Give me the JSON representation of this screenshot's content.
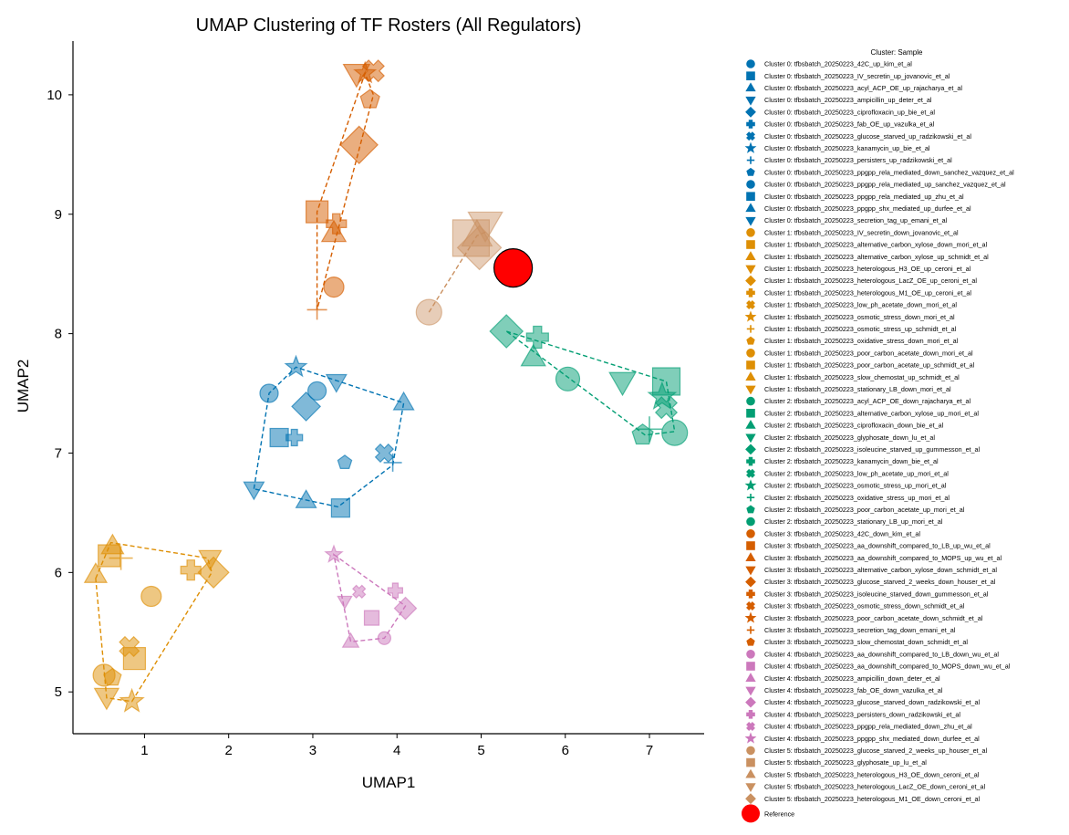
{
  "chart_data": {
    "type": "scatter",
    "title": "UMAP Clustering of TF Rosters (All Regulators)",
    "xlabel": "UMAP1",
    "ylabel": "UMAP2",
    "xlim": [
      0.15,
      7.65
    ],
    "ylim": [
      4.65,
      10.45
    ],
    "xticks": [
      1,
      2,
      3,
      4,
      5,
      6,
      7
    ],
    "yticks": [
      5,
      6,
      7,
      8,
      9,
      10
    ],
    "grid": false,
    "legend_position": "right",
    "legend_title": "Cluster: Sample",
    "cluster_colors": {
      "0": "#0173b2",
      "1": "#de8f05",
      "2": "#029e73",
      "3": "#d55e00",
      "4": "#cc78bc",
      "5": "#ca9161"
    },
    "reference": {
      "label": "Reference",
      "x": 5.38,
      "y": 8.55,
      "color": "#ff0000"
    },
    "hulls": {
      "0": [
        [
          2.3,
          6.7
        ],
        [
          2.48,
          7.5
        ],
        [
          2.8,
          7.72
        ],
        [
          4.08,
          7.42
        ],
        [
          3.95,
          6.9
        ],
        [
          3.3,
          6.55
        ]
      ],
      "1": [
        [
          0.42,
          5.95
        ],
        [
          0.6,
          6.25
        ],
        [
          1.75,
          6.12
        ],
        [
          1.8,
          6.0
        ],
        [
          0.85,
          4.92
        ],
        [
          0.55,
          4.95
        ]
      ],
      "2": [
        [
          5.3,
          8.02
        ],
        [
          7.2,
          7.6
        ],
        [
          7.3,
          7.18
        ],
        [
          6.95,
          7.15
        ]
      ],
      "3": [
        [
          3.05,
          8.2
        ],
        [
          3.05,
          9.02
        ],
        [
          3.62,
          10.18
        ],
        [
          3.72,
          10.0
        ]
      ],
      "4": [
        [
          3.25,
          6.15
        ],
        [
          4.1,
          5.72
        ],
        [
          3.85,
          5.45
        ],
        [
          3.45,
          5.42
        ]
      ],
      "5": [
        [
          4.38,
          8.18
        ],
        [
          4.95,
          8.82
        ],
        [
          5.05,
          8.85
        ]
      ]
    },
    "series": [
      {
        "name": "Cluster 0: tfbsbatch_20250223_42C_up_kim_et_al",
        "cluster": 0,
        "marker": "circle",
        "size": 10,
        "x": 2.48,
        "y": 7.5
      },
      {
        "name": "Cluster 0: tfbsbatch_20250223_IV_secretin_up_jovanovic_et_al",
        "cluster": 0,
        "marker": "square",
        "size": 10,
        "x": 2.6,
        "y": 7.13
      },
      {
        "name": "Cluster 0: tfbsbatch_20250223_acyl_ACP_OE_up_rajacharya_et_al",
        "cluster": 0,
        "marker": "triangle-up",
        "size": 10,
        "x": 4.08,
        "y": 7.42
      },
      {
        "name": "Cluster 0: tfbsbatch_20250223_ampicillin_up_deter_et_al",
        "cluster": 0,
        "marker": "triangle-down",
        "size": 10,
        "x": 3.28,
        "y": 7.6
      },
      {
        "name": "Cluster 0: tfbsbatch_20250223_ciprofloxacin_up_bie_et_al",
        "cluster": 0,
        "marker": "diamond",
        "size": 13,
        "x": 2.92,
        "y": 7.39
      },
      {
        "name": "Cluster 0: tfbsbatch_20250223_fab_OE_up_vazulka_et_al",
        "cluster": 0,
        "marker": "plus",
        "size": 9,
        "x": 2.78,
        "y": 7.13
      },
      {
        "name": "Cluster 0: tfbsbatch_20250223_glucose_starved_up_radzikowski_et_al",
        "cluster": 0,
        "marker": "x",
        "size": 10,
        "x": 3.85,
        "y": 7.0
      },
      {
        "name": "Cluster 0: tfbsbatch_20250223_kanamycin_up_bie_et_al",
        "cluster": 0,
        "marker": "star",
        "size": 10,
        "x": 2.8,
        "y": 7.72
      },
      {
        "name": "Cluster 0: tfbsbatch_20250223_persisters_up_radzikowski_et_al",
        "cluster": 0,
        "marker": "thinplus",
        "size": 10,
        "x": 3.95,
        "y": 6.92
      },
      {
        "name": "Cluster 0: tfbsbatch_20250223_ppgpp_rela_mediated_down_sanchez_vazquez_et_al",
        "cluster": 0,
        "marker": "pentagon",
        "size": 8,
        "x": 3.38,
        "y": 6.92
      },
      {
        "name": "Cluster 0: tfbsbatch_20250223_ppgpp_rela_mediated_up_sanchez_vazquez_et_al",
        "cluster": 0,
        "marker": "circle",
        "size": 10,
        "x": 3.05,
        "y": 7.52
      },
      {
        "name": "Cluster 0: tfbsbatch_20250223_ppgpp_rela_mediated_up_zhu_et_al",
        "cluster": 0,
        "marker": "square",
        "size": 10,
        "x": 3.33,
        "y": 6.54
      },
      {
        "name": "Cluster 0: tfbsbatch_20250223_ppgpp_shx_mediated_up_durfee_et_al",
        "cluster": 0,
        "marker": "triangle-up",
        "size": 10,
        "x": 2.92,
        "y": 6.6
      },
      {
        "name": "Cluster 0: tfbsbatch_20250223_secretion_tag_up_emani_et_al",
        "cluster": 0,
        "marker": "triangle-down",
        "size": 10,
        "x": 2.3,
        "y": 6.7
      },
      {
        "name": "Cluster 1: tfbsbatch_20250223_IV_secretin_down_jovanovic_et_al",
        "cluster": 1,
        "marker": "circle",
        "size": 11,
        "x": 1.08,
        "y": 5.8
      },
      {
        "name": "Cluster 1: tfbsbatch_20250223_alternative_carbon_xylose_down_mori_et_al",
        "cluster": 1,
        "marker": "square",
        "size": 12,
        "x": 0.58,
        "y": 6.14
      },
      {
        "name": "Cluster 1: tfbsbatch_20250223_alternative_carbon_xylose_up_schmidt_et_al",
        "cluster": 1,
        "marker": "triangle-up",
        "size": 11,
        "x": 0.42,
        "y": 5.98
      },
      {
        "name": "Cluster 1: tfbsbatch_20250223_heterologous_H3_OE_up_ceroni_et_al",
        "cluster": 1,
        "marker": "triangle-down",
        "size": 12,
        "x": 0.55,
        "y": 4.96
      },
      {
        "name": "Cluster 1: tfbsbatch_20250223_heterologous_LacZ_OE_up_ceroni_et_al",
        "cluster": 1,
        "marker": "diamond",
        "size": 14,
        "x": 1.82,
        "y": 6.0
      },
      {
        "name": "Cluster 1: tfbsbatch_20250223_heterologous_M1_OE_up_ceroni_et_al",
        "cluster": 1,
        "marker": "plus",
        "size": 11,
        "x": 1.55,
        "y": 6.02
      },
      {
        "name": "Cluster 1: tfbsbatch_20250223_low_ph_acetate_down_mori_et_al",
        "cluster": 1,
        "marker": "x",
        "size": 11,
        "x": 0.82,
        "y": 5.38
      },
      {
        "name": "Cluster 1: tfbsbatch_20250223_osmotic_stress_down_mori_et_al",
        "cluster": 1,
        "marker": "star",
        "size": 11,
        "x": 0.85,
        "y": 4.92
      },
      {
        "name": "Cluster 1: tfbsbatch_20250223_osmotic_stress_up_schmidt_et_al",
        "cluster": 1,
        "marker": "thinplus",
        "size": 13,
        "x": 0.72,
        "y": 6.12
      },
      {
        "name": "Cluster 1: tfbsbatch_20250223_oxidative_stress_down_mori_et_al",
        "cluster": 1,
        "marker": "pentagon",
        "size": 10,
        "x": 0.62,
        "y": 5.12
      },
      {
        "name": "Cluster 1: tfbsbatch_20250223_poor_carbon_acetate_down_mori_et_al",
        "cluster": 1,
        "marker": "circle",
        "size": 12,
        "x": 0.52,
        "y": 5.14
      },
      {
        "name": "Cluster 1: tfbsbatch_20250223_poor_carbon_acetate_up_schmidt_et_al",
        "cluster": 1,
        "marker": "square",
        "size": 12,
        "x": 0.88,
        "y": 5.28
      },
      {
        "name": "Cluster 1: tfbsbatch_20250223_slow_chemostat_up_schmidt_et_al",
        "cluster": 1,
        "marker": "triangle-up",
        "size": 11,
        "x": 0.62,
        "y": 6.22
      },
      {
        "name": "Cluster 1: tfbsbatch_20250223_stationary_LB_down_mori_et_al",
        "cluster": 1,
        "marker": "triangle-down",
        "size": 11,
        "x": 1.78,
        "y": 6.12
      },
      {
        "name": "Cluster 2: tfbsbatch_20250223_acyl_ACP_OE_down_rajacharya_et_al",
        "cluster": 2,
        "marker": "circle",
        "size": 13,
        "x": 6.03,
        "y": 7.62
      },
      {
        "name": "Cluster 2: tfbsbatch_20250223_alternative_carbon_xylose_up_mori_et_al",
        "cluster": 2,
        "marker": "square",
        "size": 15,
        "x": 7.2,
        "y": 7.6
      },
      {
        "name": "Cluster 2: tfbsbatch_20250223_ciprofloxacin_down_bie_et_al",
        "cluster": 2,
        "marker": "triangle-up",
        "size": 12,
        "x": 5.62,
        "y": 7.8
      },
      {
        "name": "Cluster 2: tfbsbatch_20250223_glyphosate_down_lu_et_al",
        "cluster": 2,
        "marker": "triangle-down",
        "size": 13,
        "x": 6.68,
        "y": 7.6
      },
      {
        "name": "Cluster 2: tfbsbatch_20250223_isoleucine_starved_up_gummesson_et_al",
        "cluster": 2,
        "marker": "diamond",
        "size": 15,
        "x": 5.3,
        "y": 8.02
      },
      {
        "name": "Cluster 2: tfbsbatch_20250223_kanamycin_down_bie_et_al",
        "cluster": 2,
        "marker": "plus",
        "size": 12,
        "x": 5.67,
        "y": 7.97
      },
      {
        "name": "Cluster 2: tfbsbatch_20250223_low_ph_acetate_up_mori_et_al",
        "cluster": 2,
        "marker": "x",
        "size": 12,
        "x": 7.2,
        "y": 7.38
      },
      {
        "name": "Cluster 2: tfbsbatch_20250223_osmotic_stress_up_mori_et_al",
        "cluster": 2,
        "marker": "star",
        "size": 13,
        "x": 7.15,
        "y": 7.47
      },
      {
        "name": "Cluster 2: tfbsbatch_20250223_oxidative_stress_up_mori_et_al",
        "cluster": 2,
        "marker": "thinplus",
        "size": 14,
        "x": 7.0,
        "y": 7.2
      },
      {
        "name": "Cluster 2: tfbsbatch_20250223_poor_carbon_acetate_up_mori_et_al",
        "cluster": 2,
        "marker": "pentagon",
        "size": 12,
        "x": 6.92,
        "y": 7.15
      },
      {
        "name": "Cluster 2: tfbsbatch_20250223_stationary_LB_up_mori_et_al",
        "cluster": 2,
        "marker": "circle",
        "size": 14,
        "x": 7.3,
        "y": 7.17
      },
      {
        "name": "Cluster 3: tfbsbatch_20250223_42C_down_kim_et_al",
        "cluster": 3,
        "marker": "circle",
        "size": 11,
        "x": 3.25,
        "y": 8.39
      },
      {
        "name": "Cluster 3: tfbsbatch_20250223_aa_downshift_compared_to_LB_up_wu_et_al",
        "cluster": 3,
        "marker": "square",
        "size": 12,
        "x": 3.05,
        "y": 9.02
      },
      {
        "name": "Cluster 3: tfbsbatch_20250223_aa_downshift_compared_to_MOPS_up_wu_et_al",
        "cluster": 3,
        "marker": "triangle-up",
        "size": 12,
        "x": 3.25,
        "y": 8.84
      },
      {
        "name": "Cluster 3: tfbsbatch_20250223_alternative_carbon_xylose_down_schmidt_et_al",
        "cluster": 3,
        "marker": "triangle-down",
        "size": 13,
        "x": 3.52,
        "y": 10.18
      },
      {
        "name": "Cluster 3: tfbsbatch_20250223_glucose_starved_2_weeks_down_houser_et_al",
        "cluster": 3,
        "marker": "diamond",
        "size": 17,
        "x": 3.55,
        "y": 9.58
      },
      {
        "name": "Cluster 3: tfbsbatch_20250223_isoleucine_starved_down_gummesson_et_al",
        "cluster": 3,
        "marker": "plus",
        "size": 11,
        "x": 3.28,
        "y": 8.92
      },
      {
        "name": "Cluster 3: tfbsbatch_20250223_osmotic_stress_down_schmidt_et_al",
        "cluster": 3,
        "marker": "x",
        "size": 12,
        "x": 3.72,
        "y": 10.2
      },
      {
        "name": "Cluster 3: tfbsbatch_20250223_poor_carbon_acetate_down_schmidt_et_al",
        "cluster": 3,
        "marker": "star",
        "size": 10,
        "x": 3.62,
        "y": 10.18
      },
      {
        "name": "Cluster 3: tfbsbatch_20250223_secretion_tag_down_emani_et_al",
        "cluster": 3,
        "marker": "thinplus",
        "size": 11,
        "x": 3.05,
        "y": 8.2
      },
      {
        "name": "Cluster 3: tfbsbatch_20250223_slow_chemostat_down_schmidt_et_al",
        "cluster": 3,
        "marker": "pentagon",
        "size": 11,
        "x": 3.68,
        "y": 9.96
      },
      {
        "name": "Cluster 4: tfbsbatch_20250223_aa_downshift_compared_to_LB_down_wu_et_al",
        "cluster": 4,
        "marker": "circle",
        "size": 7,
        "x": 3.85,
        "y": 5.45
      },
      {
        "name": "Cluster 4: tfbsbatch_20250223_aa_downshift_compared_to_MOPS_down_wu_et_al",
        "cluster": 4,
        "marker": "square",
        "size": 8,
        "x": 3.7,
        "y": 5.62
      },
      {
        "name": "Cluster 4: tfbsbatch_20250223_ampicillin_down_deter_et_al",
        "cluster": 4,
        "marker": "triangle-up",
        "size": 8,
        "x": 3.45,
        "y": 5.42
      },
      {
        "name": "Cluster 4: tfbsbatch_20250223_fab_OE_down_vazulka_et_al",
        "cluster": 4,
        "marker": "triangle-down",
        "size": 7,
        "x": 3.38,
        "y": 5.76
      },
      {
        "name": "Cluster 4: tfbsbatch_20250223_glucose_starved_down_radzikowski_et_al",
        "cluster": 4,
        "marker": "diamond",
        "size": 10,
        "x": 4.1,
        "y": 5.7
      },
      {
        "name": "Cluster 4: tfbsbatch_20250223_persisters_down_radzikowski_et_al",
        "cluster": 4,
        "marker": "plus",
        "size": 8,
        "x": 3.98,
        "y": 5.85
      },
      {
        "name": "Cluster 4: tfbsbatch_20250223_ppgpp_rela_mediated_down_zhu_et_al",
        "cluster": 4,
        "marker": "x",
        "size": 7,
        "x": 3.55,
        "y": 5.84
      },
      {
        "name": "Cluster 4: tfbsbatch_20250223_ppgpp_shx_mediated_down_durfee_et_al",
        "cluster": 4,
        "marker": "star",
        "size": 8,
        "x": 3.25,
        "y": 6.15
      },
      {
        "name": "Cluster 5: tfbsbatch_20250223_glucose_starved_2_weeks_up_houser_et_al",
        "cluster": 5,
        "marker": "circle",
        "size": 14,
        "x": 4.38,
        "y": 8.18
      },
      {
        "name": "Cluster 5: tfbsbatch_20250223_glyphosate_up_lu_et_al",
        "cluster": 5,
        "marker": "square",
        "size": 20,
        "x": 4.88,
        "y": 8.8
      },
      {
        "name": "Cluster 5: tfbsbatch_20250223_heterologous_H3_OE_down_ceroni_et_al",
        "cluster": 5,
        "marker": "triangle-up",
        "size": 15,
        "x": 4.95,
        "y": 8.82
      },
      {
        "name": "Cluster 5: tfbsbatch_20250223_heterologous_LacZ_OE_down_ceroni_et_al",
        "cluster": 5,
        "marker": "triangle-down",
        "size": 17,
        "x": 5.05,
        "y": 8.92
      },
      {
        "name": "Cluster 5: tfbsbatch_20250223_heterologous_M1_OE_down_ceroni_et_al",
        "cluster": 5,
        "marker": "diamond",
        "size": 20,
        "x": 4.98,
        "y": 8.72
      }
    ]
  }
}
